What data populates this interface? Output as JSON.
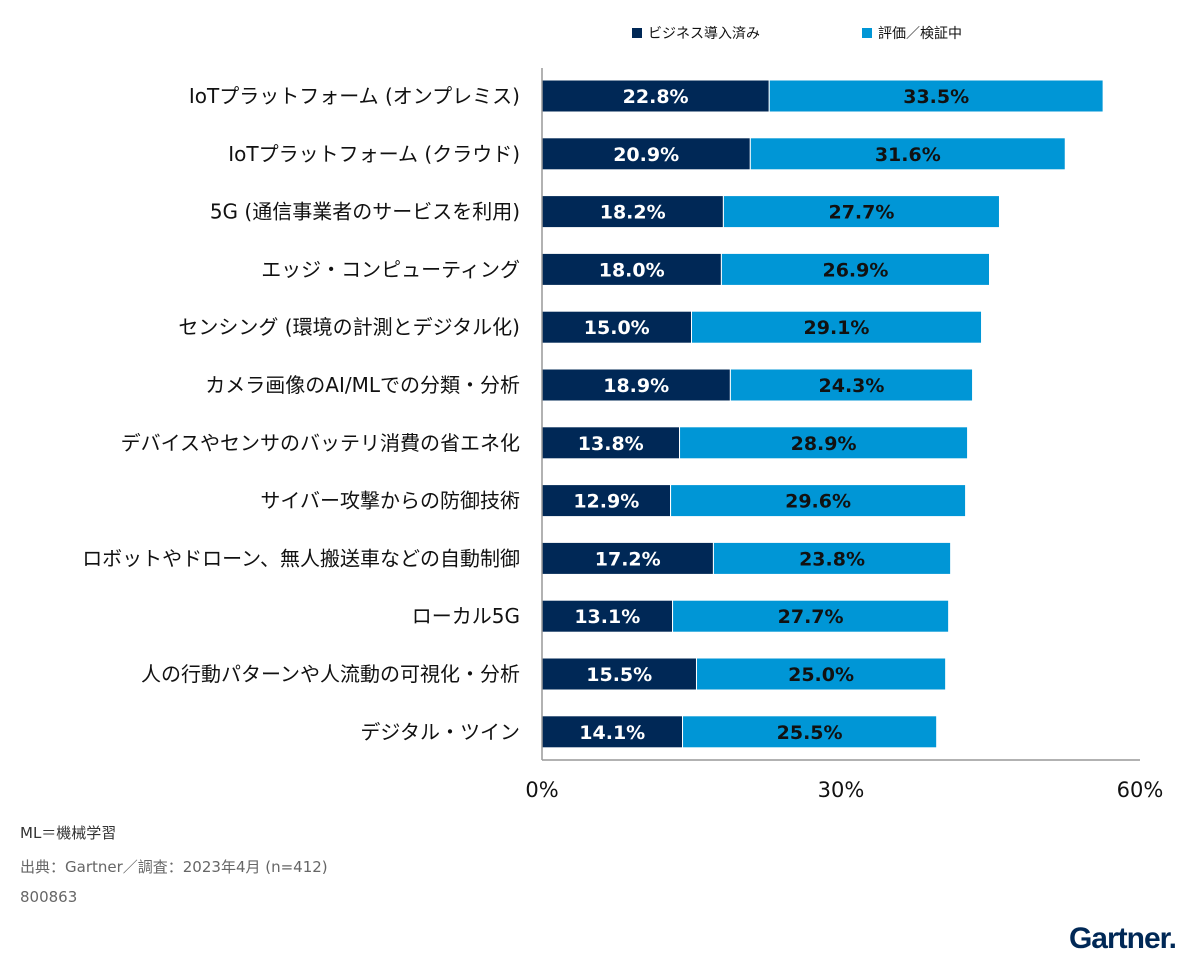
{
  "chart_data": {
    "type": "bar",
    "orientation": "horizontal",
    "stacked": true,
    "categories": [
      "IoTプラットフォーム (オンプレミス)",
      "IoTプラットフォーム (クラウド)",
      "5G (通信事業者のサービスを利用)",
      "エッジ・コンピューティング",
      "センシング (環境の計測とデジタル化)",
      "カメラ画像のAI/MLでの分類・分析",
      "デバイスやセンサのバッテリ消費の省エネ化",
      "サイバー攻撃からの防御技術",
      "ロボットやドローン、無人搬送車などの自動制御",
      "ローカル5G",
      "人の行動パターンや人流動の可視化・分析",
      "デジタル・ツイン"
    ],
    "series": [
      {
        "name": "ビジネス導入済み",
        "color": "#002856",
        "values": [
          22.8,
          20.9,
          18.2,
          18.0,
          15.0,
          18.9,
          13.8,
          12.9,
          17.2,
          13.1,
          15.5,
          14.1
        ],
        "labels": [
          "22.8%",
          "20.9%",
          "18.2%",
          "18.0%",
          "15.0%",
          "18.9%",
          "13.8%",
          "12.9%",
          "17.2%",
          "13.1%",
          "15.5%",
          "14.1%"
        ]
      },
      {
        "name": "評価／検証中",
        "color": "#0096d6",
        "values": [
          33.5,
          31.6,
          27.7,
          26.9,
          29.1,
          24.3,
          28.9,
          29.6,
          23.8,
          27.7,
          25.0,
          25.5
        ],
        "labels": [
          "33.5%",
          "31.6%",
          "27.7%",
          "26.9%",
          "29.1%",
          "24.3%",
          "28.9%",
          "29.6%",
          "23.8%",
          "27.7%",
          "25.0%",
          "25.5%"
        ]
      }
    ],
    "xlim": [
      0,
      60
    ],
    "x_ticks": [
      0,
      30,
      60
    ],
    "x_tick_labels": [
      "0%",
      "30%",
      "60%"
    ],
    "grid": false,
    "legend_position": "top"
  },
  "footnotes": {
    "abbreviation": "ML＝機械学習",
    "source": "出典：Gartner／調査：2023年4月 (n=412)",
    "id": "800863"
  },
  "logo_text": "Gartner."
}
